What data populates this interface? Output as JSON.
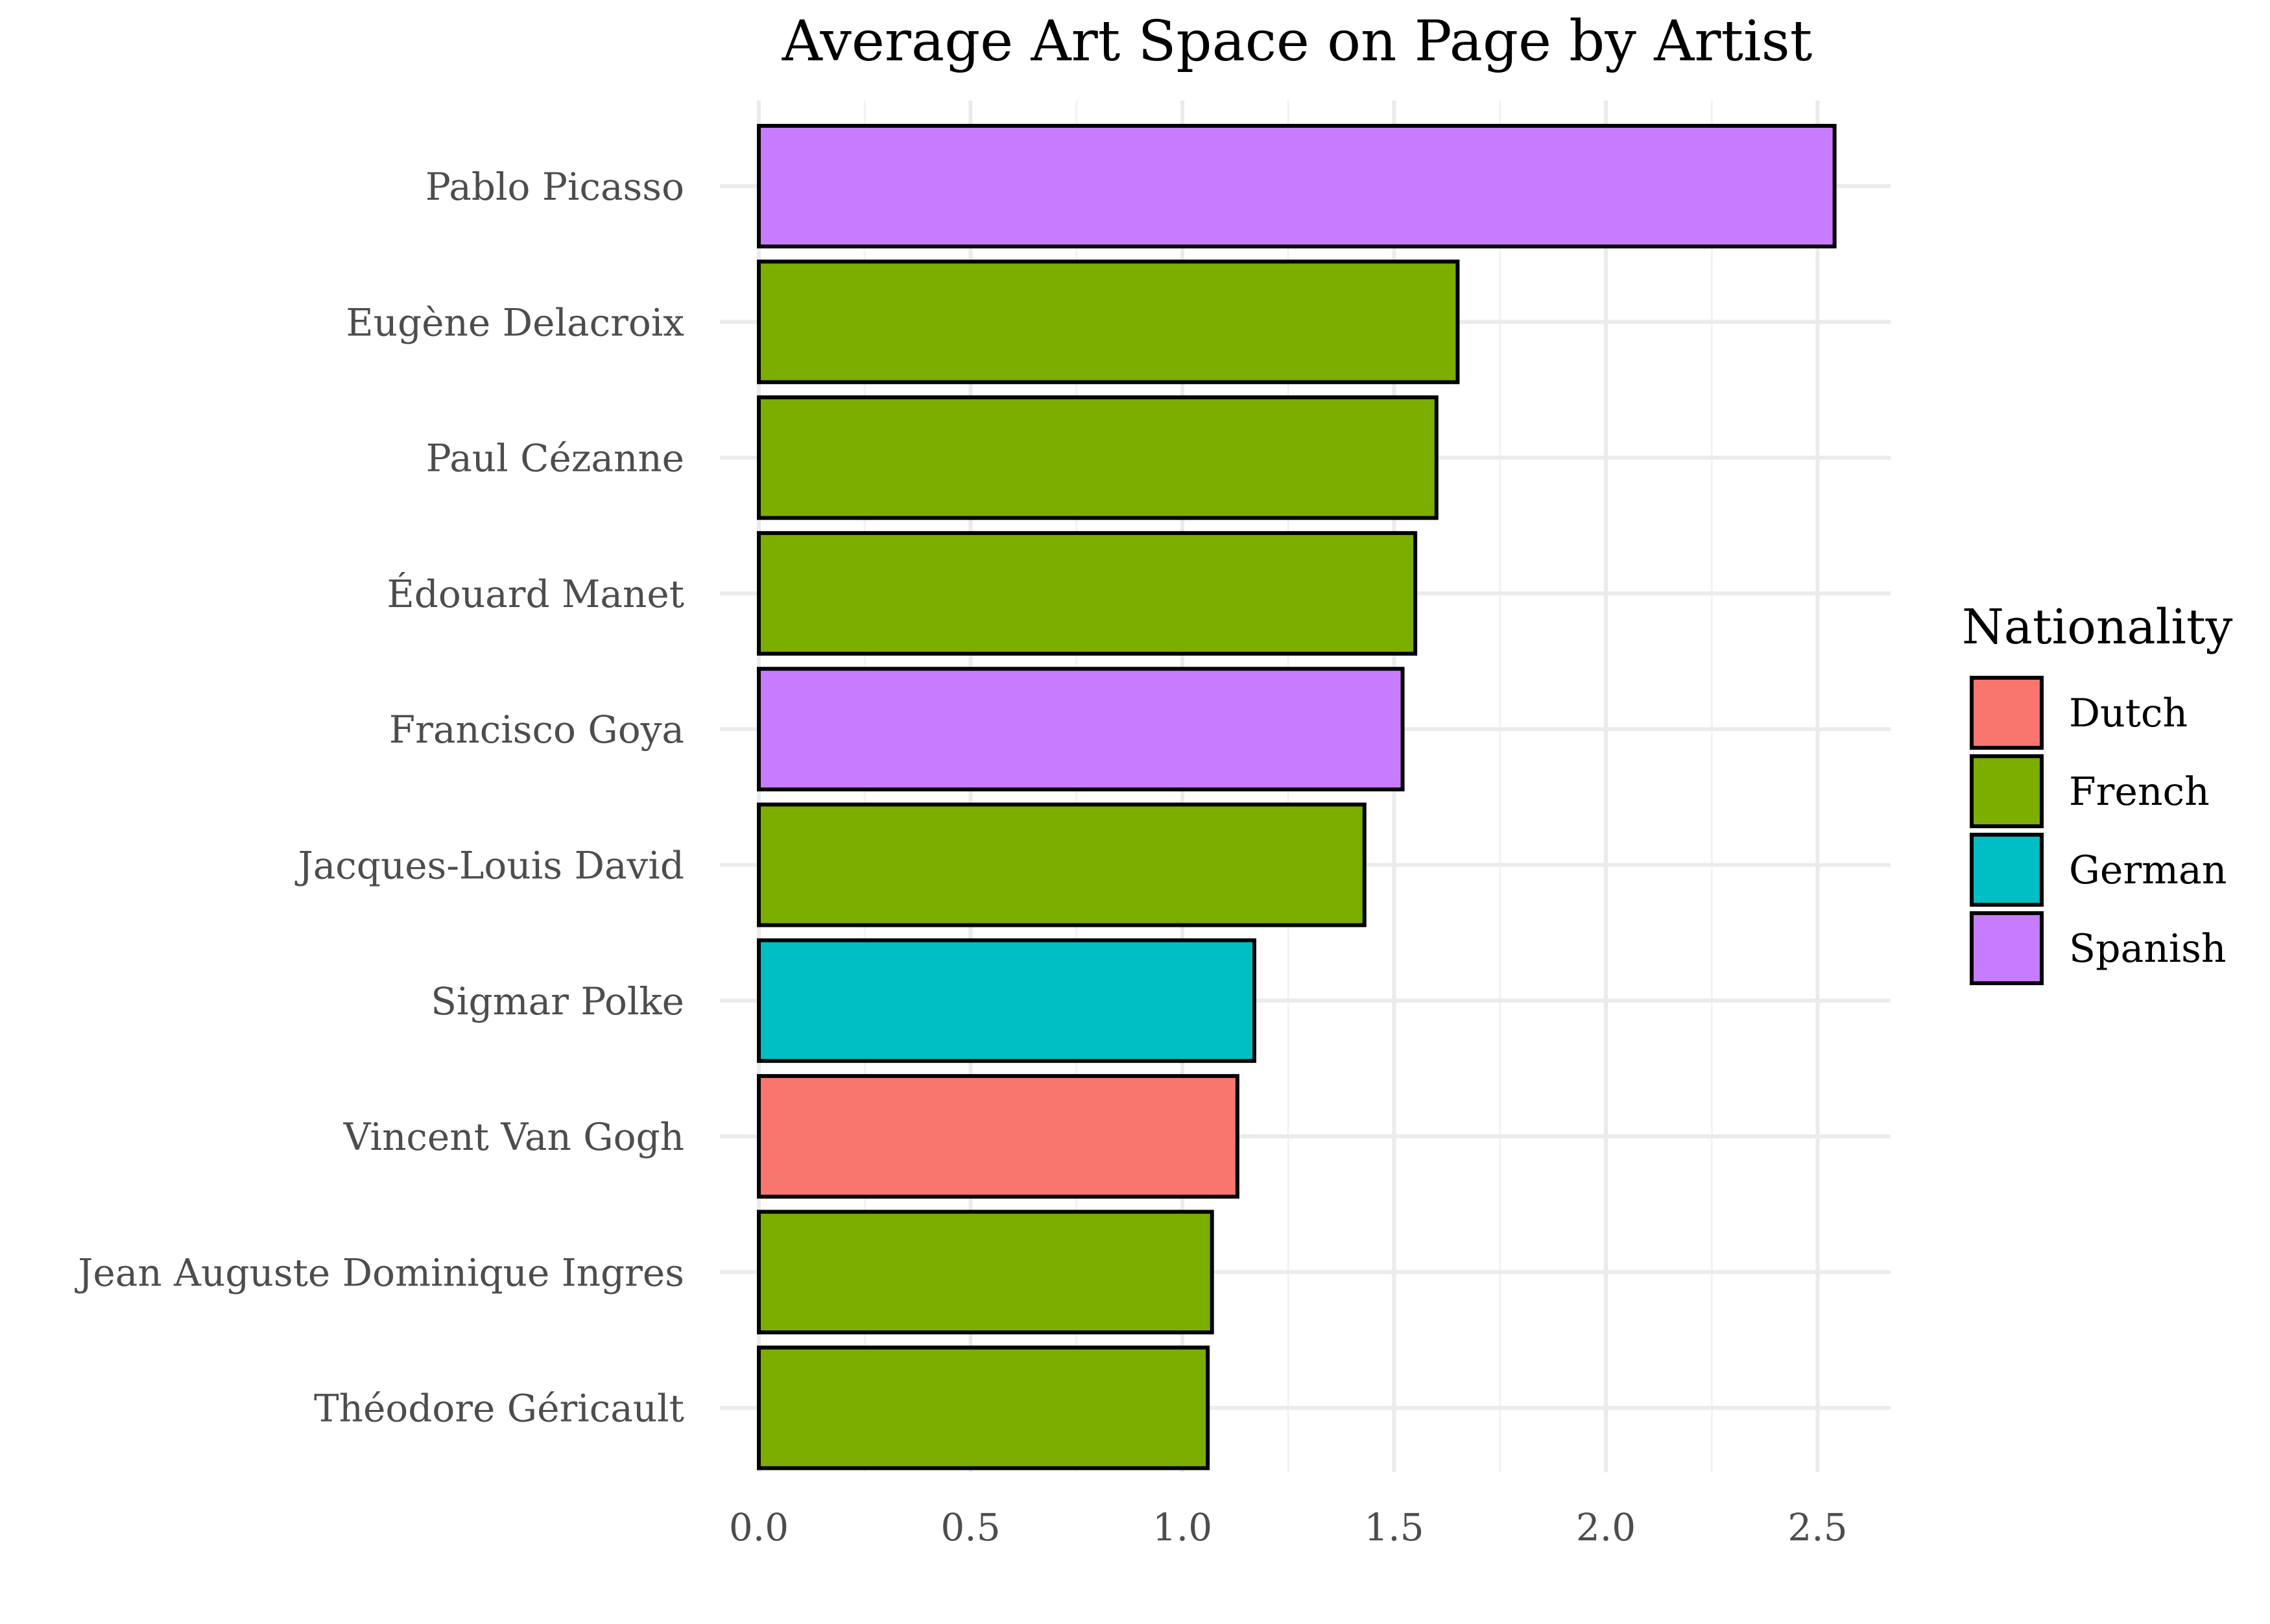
{
  "chart_data": {
    "type": "bar",
    "orientation": "horizontal",
    "title": "Average Art Space on Page by Artist",
    "xlabel": "",
    "ylabel": "",
    "xlim": [
      0,
      2.62
    ],
    "x_ticks": [
      0.0,
      0.5,
      1.0,
      1.5,
      2.0,
      2.5
    ],
    "x_tick_labels": [
      "0.0",
      "0.5",
      "1.0",
      "1.5",
      "2.0",
      "2.5"
    ],
    "grid": true,
    "legend_position": "right",
    "legend_title": "Nationality",
    "legend": [
      {
        "label": "Dutch",
        "color": "#F8766D"
      },
      {
        "label": "French",
        "color": "#7CAE00"
      },
      {
        "label": "German",
        "color": "#00BFC4"
      },
      {
        "label": "Spanish",
        "color": "#C77CFF"
      }
    ],
    "bars": [
      {
        "category": "Pablo Picasso",
        "value": 2.54,
        "group": "Spanish"
      },
      {
        "category": "Eugène Delacroix",
        "value": 1.65,
        "group": "French"
      },
      {
        "category": "Paul Cézanne",
        "value": 1.6,
        "group": "French"
      },
      {
        "category": "Édouard Manet",
        "value": 1.55,
        "group": "French"
      },
      {
        "category": "Francisco Goya",
        "value": 1.52,
        "group": "Spanish"
      },
      {
        "category": "Jacques-Louis David",
        "value": 1.43,
        "group": "French"
      },
      {
        "category": "Sigmar Polke",
        "value": 1.17,
        "group": "German"
      },
      {
        "category": "Vincent Van Gogh",
        "value": 1.13,
        "group": "Dutch"
      },
      {
        "category": "Jean Auguste Dominique Ingres",
        "value": 1.07,
        "group": "French"
      },
      {
        "category": "Théodore Géricault",
        "value": 1.06,
        "group": "French"
      }
    ]
  }
}
